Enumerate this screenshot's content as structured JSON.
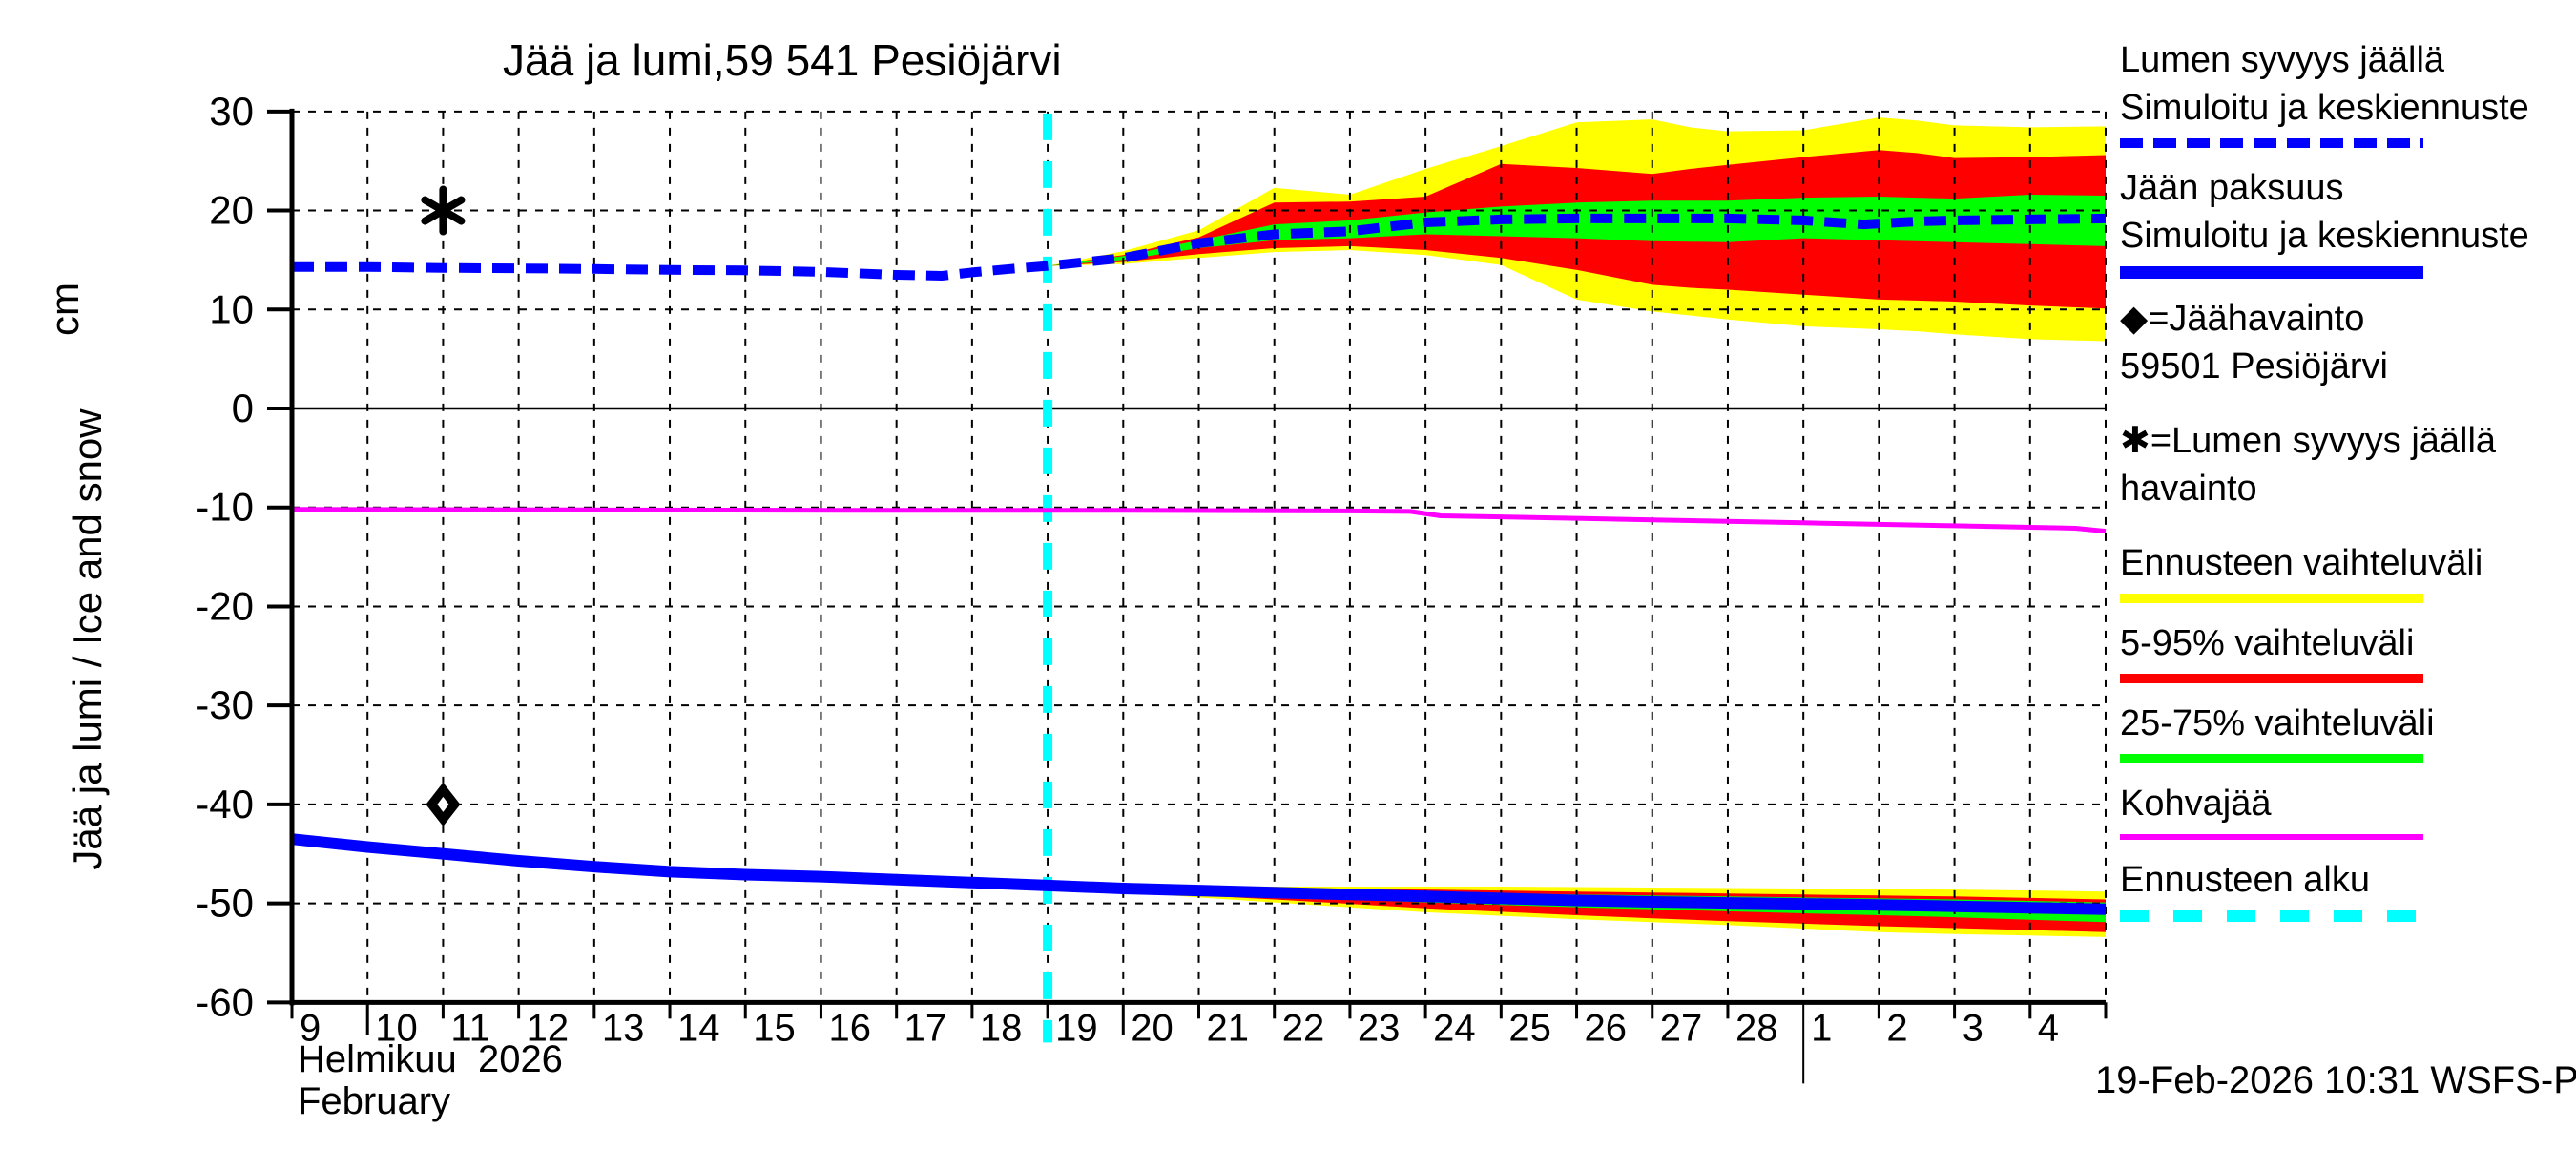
{
  "meta": {
    "title": "Jää ja lumi,59 541 Pesiöjärvi",
    "footer": "19-Feb-2026 10:31 WSFS-P"
  },
  "axes": {
    "ylabel_main": "Jää ja lumi / Ice and snow",
    "ylabel_unit": "cm",
    "month_label_fi": "Helmikuu  2026",
    "month_label_en": "February",
    "ylim": [
      -60,
      30
    ],
    "xlim_days": [
      9,
      33
    ],
    "y_ticks": [
      30,
      20,
      10,
      0,
      -10,
      -20,
      -30,
      -40,
      -50,
      -60
    ],
    "x_ticks": [
      {
        "day": 9,
        "label": "9"
      },
      {
        "day": 10,
        "label": "10",
        "long": true
      },
      {
        "day": 11,
        "label": "11"
      },
      {
        "day": 12,
        "label": "12"
      },
      {
        "day": 13,
        "label": "13"
      },
      {
        "day": 14,
        "label": "14"
      },
      {
        "day": 15,
        "label": "15"
      },
      {
        "day": 16,
        "label": "16"
      },
      {
        "day": 17,
        "label": "17"
      },
      {
        "day": 18,
        "label": "18"
      },
      {
        "day": 19,
        "label": "19"
      },
      {
        "day": 20,
        "label": "20",
        "long": true
      },
      {
        "day": 21,
        "label": "21"
      },
      {
        "day": 22,
        "label": "22"
      },
      {
        "day": 23,
        "label": "23"
      },
      {
        "day": 24,
        "label": "24"
      },
      {
        "day": 25,
        "label": "25"
      },
      {
        "day": 26,
        "label": "26"
      },
      {
        "day": 27,
        "label": "27"
      },
      {
        "day": 28,
        "label": "28"
      },
      {
        "day": 29,
        "label": "1",
        "month_line": true
      },
      {
        "day": 30,
        "label": "2"
      },
      {
        "day": 31,
        "label": "3"
      },
      {
        "day": 32,
        "label": "4"
      },
      {
        "day": 33,
        "label": null
      }
    ]
  },
  "colors": {
    "median_blue": "#0000ff",
    "band_yellow": "#ffff00",
    "band_red": "#ff0000",
    "band_green": "#00ff00",
    "kohvajaa_magenta": "#ff00ff",
    "forecast_start_cyan": "#00ffff",
    "grid_black": "#000000"
  },
  "legend": [
    {
      "lines": [
        "Lumen syvyys jäällä",
        "Simuloitu ja keskiennuste"
      ],
      "sample": "blue-dashed",
      "icon": null
    },
    {
      "lines": [
        "Jään paksuus",
        "Simuloitu ja keskiennuste"
      ],
      "sample": "blue-solid",
      "icon": null
    },
    {
      "lines": [
        "=Jäähavainto",
        "59501 Pesiöjärvi"
      ],
      "sample": null,
      "icon": "◆",
      "icon_name": "diamond-marker-icon"
    },
    {
      "lines": [
        "=Lumen syvyys jäällä",
        "havainto"
      ],
      "sample": null,
      "icon": "✱",
      "icon_name": "asterisk-marker-icon"
    },
    {
      "lines": [
        "Ennusteen vaihteluväli"
      ],
      "sample": "yellow-solid",
      "icon": null
    },
    {
      "lines": [
        "5-95% vaihteluväli"
      ],
      "sample": "red-solid",
      "icon": null
    },
    {
      "lines": [
        "25-75% vaihteluväli"
      ],
      "sample": "green-solid",
      "icon": null
    },
    {
      "lines": [
        "Kohvajää"
      ],
      "sample": "magenta-solid",
      "icon": null
    },
    {
      "lines": [
        "Ennusteen alku"
      ],
      "sample": "cyan-dashed",
      "icon": null
    }
  ],
  "chart_data": {
    "type": "line",
    "title": "Jää ja lumi,59 541 Pesiöjärvi",
    "ylabel": "Jää ja lumi / Ice and snow (cm)",
    "xlabel": "Helmikuu 2026 / February (day 29-33 = March 1-5)",
    "ylim": [
      -60,
      30
    ],
    "forecast_start_day": 19,
    "snow_depth_on_ice": {
      "history_median": [
        [
          9,
          14.3
        ],
        [
          10,
          14.3
        ],
        [
          11,
          14.2
        ],
        [
          12,
          14.15
        ],
        [
          13,
          14.1
        ],
        [
          14,
          14.0
        ],
        [
          15,
          13.95
        ],
        [
          16,
          13.8
        ],
        [
          16.5,
          13.65
        ],
        [
          17,
          13.5
        ],
        [
          17.6,
          13.4
        ],
        [
          18,
          13.75
        ],
        [
          18.5,
          14.1
        ],
        [
          19,
          14.4
        ]
      ],
      "forecast_median": [
        [
          19,
          14.4
        ],
        [
          20,
          15.2
        ],
        [
          21,
          16.7
        ],
        [
          22,
          17.6
        ],
        [
          23,
          17.9
        ],
        [
          24,
          18.8
        ],
        [
          25,
          19.1
        ],
        [
          26,
          19.2
        ],
        [
          27,
          19.2
        ],
        [
          28,
          19.2
        ],
        [
          29,
          19.0
        ],
        [
          29.8,
          18.6
        ],
        [
          30.5,
          18.9
        ],
        [
          31,
          19.0
        ],
        [
          32,
          19.1
        ],
        [
          33,
          19.2
        ]
      ],
      "band_days": [
        19,
        20,
        21,
        22,
        23,
        24,
        25,
        26,
        27,
        27.5,
        28,
        29,
        30,
        30.5,
        31,
        32,
        33
      ],
      "yellow_top": [
        14.4,
        15.9,
        18.0,
        22.3,
        21.6,
        24.2,
        26.5,
        28.9,
        29.2,
        28.4,
        28.0,
        28.1,
        29.4,
        29.1,
        28.6,
        28.4,
        28.5
      ],
      "red_top": [
        14.4,
        15.5,
        17.3,
        20.8,
        20.9,
        21.4,
        24.7,
        24.3,
        23.7,
        24.2,
        24.6,
        25.4,
        26.1,
        25.8,
        25.3,
        25.4,
        25.6
      ],
      "green_top": [
        14.4,
        15.4,
        17.0,
        18.6,
        19.0,
        19.8,
        20.4,
        20.8,
        21.0,
        21.0,
        21.0,
        21.3,
        21.4,
        21.3,
        21.2,
        21.6,
        21.5
      ],
      "green_bot": [
        14.4,
        15.0,
        16.2,
        17.0,
        17.2,
        17.6,
        17.4,
        17.2,
        16.9,
        16.85,
        16.8,
        17.2,
        17.0,
        16.9,
        16.8,
        16.6,
        16.4
      ],
      "red_bot": [
        14.4,
        14.8,
        15.6,
        16.2,
        16.4,
        16.0,
        15.2,
        14.0,
        12.5,
        12.2,
        12.0,
        11.5,
        11.0,
        10.9,
        10.8,
        10.4,
        10.1
      ],
      "yellow_bot": [
        14.4,
        14.6,
        15.2,
        15.8,
        16.0,
        15.5,
        14.5,
        11.0,
        9.8,
        9.4,
        9.0,
        8.3,
        8.0,
        7.8,
        7.5,
        7.0,
        6.8
      ]
    },
    "ice_thickness": {
      "history_median": [
        [
          9,
          -43.5
        ],
        [
          10,
          -44.3
        ],
        [
          11,
          -45.0
        ],
        [
          12,
          -45.7
        ],
        [
          13,
          -46.3
        ],
        [
          14,
          -46.8
        ],
        [
          15,
          -47.1
        ],
        [
          16,
          -47.3
        ],
        [
          17,
          -47.6
        ],
        [
          18,
          -47.9
        ],
        [
          19,
          -48.2
        ]
      ],
      "forecast_median": [
        [
          19,
          -48.2
        ],
        [
          20,
          -48.5
        ],
        [
          21,
          -48.7
        ],
        [
          22,
          -48.9
        ],
        [
          23,
          -49.1
        ],
        [
          24,
          -49.3
        ],
        [
          25,
          -49.5
        ],
        [
          26,
          -49.7
        ],
        [
          27,
          -49.85
        ],
        [
          28,
          -49.95
        ],
        [
          29,
          -50.05
        ],
        [
          30,
          -50.15
        ],
        [
          31,
          -50.3
        ],
        [
          32,
          -50.45
        ],
        [
          33,
          -50.6
        ]
      ],
      "band_days": [
        19,
        20,
        21,
        22,
        23,
        24,
        25,
        26,
        27,
        28,
        29,
        30,
        31,
        32,
        33
      ],
      "yellow_top": [
        -48.2,
        -48.25,
        -48.25,
        -48.3,
        -48.3,
        -48.3,
        -48.3,
        -48.35,
        -48.4,
        -48.45,
        -48.5,
        -48.55,
        -48.6,
        -48.7,
        -48.8
      ],
      "red_top": [
        -48.2,
        -48.35,
        -48.4,
        -48.5,
        -48.55,
        -48.6,
        -48.7,
        -48.8,
        -48.9,
        -49.0,
        -49.1,
        -49.2,
        -49.3,
        -49.45,
        -49.6
      ],
      "green_top": [
        -48.2,
        -48.4,
        -48.55,
        -48.7,
        -48.8,
        -48.9,
        -49.0,
        -49.1,
        -49.2,
        -49.3,
        -49.4,
        -49.5,
        -49.6,
        -49.75,
        -49.9
      ],
      "green_bot": [
        -48.2,
        -48.65,
        -49.0,
        -49.3,
        -49.6,
        -49.9,
        -50.15,
        -50.4,
        -50.6,
        -50.8,
        -51.0,
        -51.2,
        -51.4,
        -51.65,
        -51.9
      ],
      "red_bot": [
        -48.2,
        -48.75,
        -49.2,
        -49.6,
        -50.05,
        -50.5,
        -50.85,
        -51.2,
        -51.5,
        -51.8,
        -52.05,
        -52.3,
        -52.5,
        -52.7,
        -52.9
      ],
      "yellow_bot": [
        -48.2,
        -48.85,
        -49.4,
        -49.9,
        -50.4,
        -50.9,
        -51.25,
        -51.6,
        -51.9,
        -52.2,
        -52.55,
        -52.9,
        -53.1,
        -53.25,
        -53.4
      ]
    },
    "kohvajaa": [
      [
        9,
        -10.2
      ],
      [
        13,
        -10.25
      ],
      [
        17,
        -10.3
      ],
      [
        20,
        -10.3
      ],
      [
        23,
        -10.35
      ],
      [
        23.8,
        -10.4
      ],
      [
        24.2,
        -10.85
      ],
      [
        25,
        -10.95
      ],
      [
        26,
        -11.1
      ],
      [
        27,
        -11.25
      ],
      [
        28,
        -11.4
      ],
      [
        29,
        -11.55
      ],
      [
        30,
        -11.7
      ],
      [
        31,
        -11.85
      ],
      [
        32,
        -12.0
      ],
      [
        32.6,
        -12.1
      ],
      [
        33,
        -12.4
      ]
    ],
    "observations": {
      "ice_observation_diamond": {
        "day": 11,
        "value": -40
      },
      "snow_observation_asterisk": {
        "day": 11,
        "value": 20
      }
    }
  }
}
